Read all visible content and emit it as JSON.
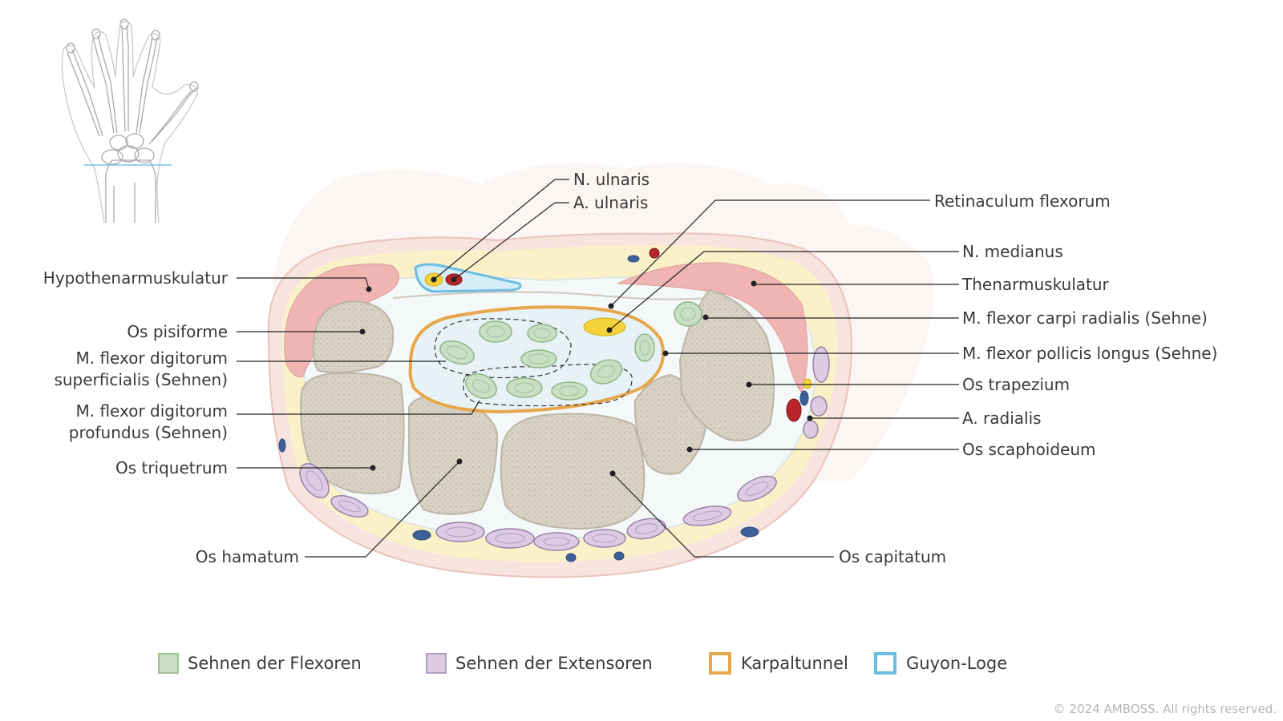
{
  "labels": {
    "n_ulnaris": "N. ulnaris",
    "a_ulnaris": "A. ulnaris",
    "retinaculum": "Retinaculum flexorum",
    "n_medianus": "N. medianus",
    "thenar": "Thenarmuskulatur",
    "fcr": "M. flexor carpi radialis (Sehne)",
    "fpl": "M. flexor pollicis longus (Sehne)",
    "trapezium": "Os trapezium",
    "a_radialis": "A. radialis",
    "scaphoideum": "Os scaphoideum",
    "capitatum": "Os capitatum",
    "hypothenar": "Hypothenarmuskulatur",
    "pisiforme": "Os pisiforme",
    "fds_line1": "M. flexor digitorum",
    "fds_line2": "superficialis (Sehnen)",
    "fdp_line1": "M. flexor digitorum",
    "fdp_line2": "profundus (Sehnen)",
    "triquetrum": "Os triquetrum",
    "hamatum": "Os hamatum"
  },
  "legend": [
    {
      "label": "Sehnen der Flexoren",
      "color": "#c9dfc2",
      "border": "#9fc197",
      "style": "filled"
    },
    {
      "label": "Sehnen der Extensoren",
      "color": "#dccbe3",
      "border": "#b29ec0",
      "style": "filled"
    },
    {
      "label": "Karpaltunnel",
      "color": "#ffffff",
      "border": "#e8a64a",
      "style": "outline"
    },
    {
      "label": "Guyon-Loge",
      "color": "#ffffff",
      "border": "#6cbde3",
      "style": "outline"
    }
  ],
  "copyright": "© 2024 AMBOSS. All rights reserved.",
  "colors": {
    "skin": "#f7e4df",
    "fat": "#fbf1c8",
    "muscle": "#f0b5b3",
    "bone": "#d8d2c5",
    "carpal_tunnel": "#e8a64a",
    "guyon": "#6cbde3",
    "nerve": "#f5d23c",
    "artery": "#b8262c",
    "vein": "#3d5f9a"
  },
  "icons": {
    "thumbnail": "hand-skeleton-icon"
  }
}
